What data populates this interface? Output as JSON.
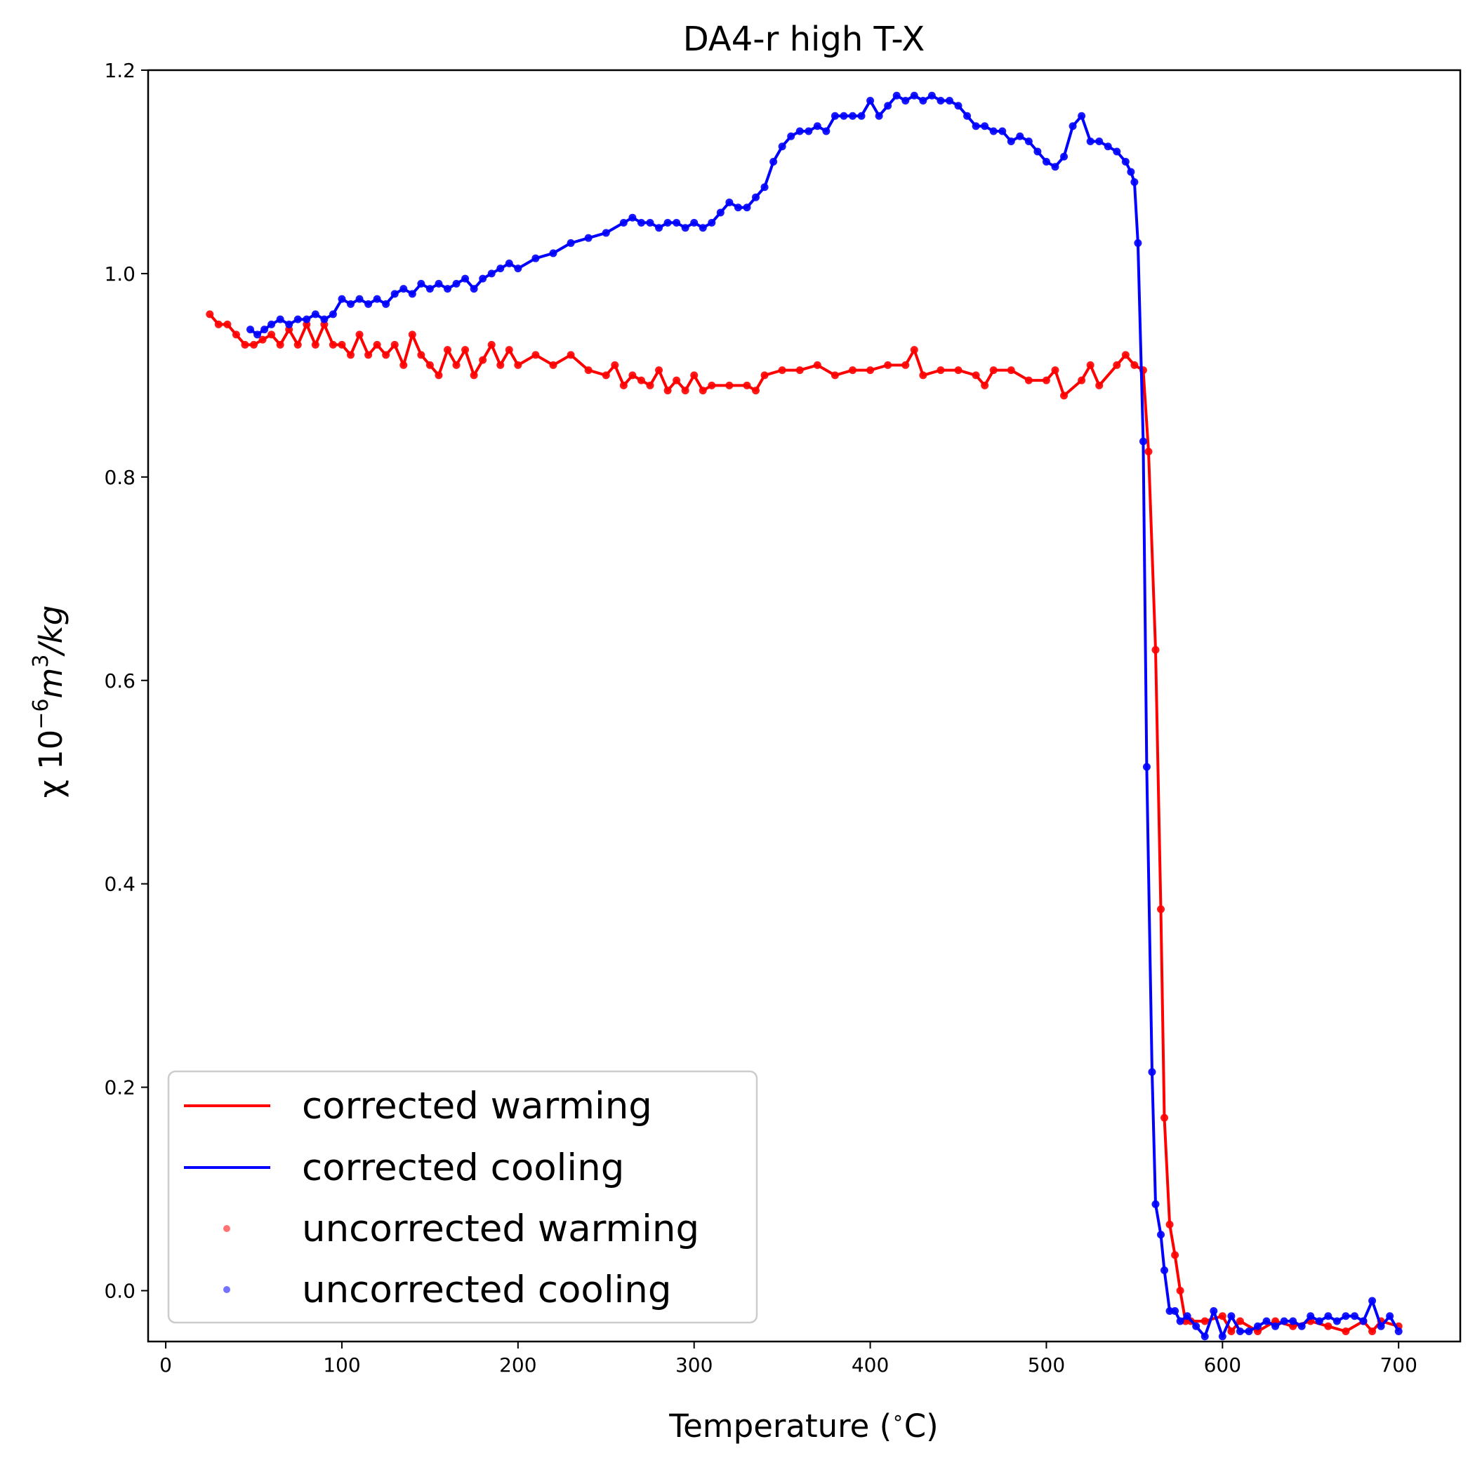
{
  "chart_data": {
    "type": "line",
    "title": "DA4-r high T-X",
    "xlabel": "Temperature (",
    "xlabel_degree": "∘",
    "xlabel_unit": "C)",
    "ylabel": "χ 10",
    "ylabel_exp": "−6",
    "ylabel_unit": "m",
    "ylabel_unit_exp": "3",
    "ylabel_tail": "/kg",
    "xlim": [
      -10,
      735
    ],
    "ylim": [
      -0.05,
      1.2
    ],
    "xticks": [
      0,
      100,
      200,
      300,
      400,
      500,
      600,
      700
    ],
    "yticks": [
      0.0,
      0.2,
      0.4,
      0.6,
      0.8,
      1.0,
      1.2
    ],
    "xtick_labels": [
      "0",
      "100",
      "200",
      "300",
      "400",
      "500",
      "600",
      "700"
    ],
    "ytick_labels": [
      "0.0",
      "0.2",
      "0.4",
      "0.6",
      "0.8",
      "1.0",
      "1.2"
    ],
    "legend_position": "lower-left",
    "series": [
      {
        "name": "corrected warming",
        "color": "#ff0000",
        "style": "line",
        "x": [
          25,
          30,
          35,
          40,
          45,
          50,
          55,
          60,
          65,
          70,
          75,
          80,
          85,
          90,
          95,
          100,
          105,
          110,
          115,
          120,
          125,
          130,
          135,
          140,
          145,
          150,
          155,
          160,
          165,
          170,
          175,
          180,
          185,
          190,
          195,
          200,
          210,
          220,
          230,
          240,
          250,
          255,
          260,
          265,
          270,
          275,
          280,
          285,
          290,
          295,
          300,
          305,
          310,
          320,
          330,
          335,
          340,
          350,
          360,
          370,
          380,
          390,
          400,
          410,
          420,
          425,
          430,
          440,
          450,
          460,
          465,
          470,
          480,
          490,
          500,
          505,
          510,
          520,
          525,
          530,
          540,
          545,
          550,
          555,
          558,
          562,
          565,
          567,
          570,
          573,
          576,
          579,
          582,
          590,
          600,
          605,
          610,
          620,
          630,
          640,
          650,
          660,
          670,
          680,
          685,
          690,
          700
        ],
        "y": [
          0.96,
          0.95,
          0.95,
          0.94,
          0.93,
          0.93,
          0.935,
          0.94,
          0.93,
          0.945,
          0.93,
          0.95,
          0.93,
          0.95,
          0.93,
          0.93,
          0.92,
          0.94,
          0.92,
          0.93,
          0.92,
          0.93,
          0.91,
          0.94,
          0.92,
          0.91,
          0.9,
          0.925,
          0.91,
          0.925,
          0.9,
          0.915,
          0.93,
          0.91,
          0.925,
          0.91,
          0.92,
          0.91,
          0.92,
          0.905,
          0.9,
          0.91,
          0.89,
          0.9,
          0.895,
          0.89,
          0.905,
          0.885,
          0.895,
          0.885,
          0.9,
          0.885,
          0.89,
          0.89,
          0.89,
          0.885,
          0.9,
          0.905,
          0.905,
          0.91,
          0.9,
          0.905,
          0.905,
          0.91,
          0.91,
          0.925,
          0.9,
          0.905,
          0.905,
          0.9,
          0.89,
          0.905,
          0.905,
          0.895,
          0.895,
          0.905,
          0.88,
          0.895,
          0.91,
          0.89,
          0.91,
          0.92,
          0.91,
          0.905,
          0.825,
          0.63,
          0.375,
          0.17,
          0.065,
          0.035,
          0.0,
          -0.03,
          -0.03,
          -0.03,
          -0.025,
          -0.04,
          -0.03,
          -0.04,
          -0.03,
          -0.035,
          -0.03,
          -0.035,
          -0.04,
          -0.03,
          -0.04,
          -0.03,
          -0.035
        ]
      },
      {
        "name": "corrected cooling",
        "color": "#0000ff",
        "style": "line",
        "x": [
          48,
          52,
          56,
          60,
          65,
          70,
          75,
          80,
          85,
          90,
          95,
          100,
          105,
          110,
          115,
          120,
          125,
          130,
          135,
          140,
          145,
          150,
          155,
          160,
          165,
          170,
          175,
          180,
          185,
          190,
          195,
          200,
          210,
          220,
          230,
          240,
          250,
          260,
          265,
          270,
          275,
          280,
          285,
          290,
          295,
          300,
          305,
          310,
          315,
          320,
          325,
          330,
          335,
          340,
          345,
          350,
          355,
          360,
          365,
          370,
          375,
          380,
          385,
          390,
          395,
          400,
          405,
          410,
          415,
          420,
          425,
          430,
          435,
          440,
          445,
          450,
          455,
          460,
          465,
          470,
          475,
          480,
          485,
          490,
          495,
          500,
          505,
          510,
          515,
          520,
          525,
          530,
          535,
          540,
          545,
          548,
          550,
          552,
          555,
          557,
          560,
          562,
          565,
          567,
          570,
          573,
          576,
          580,
          585,
          590,
          595,
          600,
          605,
          610,
          615,
          620,
          625,
          630,
          635,
          640,
          645,
          650,
          655,
          660,
          665,
          670,
          675,
          680,
          685,
          690,
          695,
          700
        ],
        "y": [
          0.945,
          0.94,
          0.945,
          0.95,
          0.955,
          0.95,
          0.955,
          0.955,
          0.96,
          0.955,
          0.96,
          0.975,
          0.97,
          0.975,
          0.97,
          0.975,
          0.97,
          0.98,
          0.985,
          0.98,
          0.99,
          0.985,
          0.99,
          0.985,
          0.99,
          0.995,
          0.985,
          0.995,
          1.0,
          1.005,
          1.01,
          1.005,
          1.015,
          1.02,
          1.03,
          1.035,
          1.04,
          1.05,
          1.055,
          1.05,
          1.05,
          1.045,
          1.05,
          1.05,
          1.045,
          1.05,
          1.045,
          1.05,
          1.06,
          1.07,
          1.065,
          1.065,
          1.075,
          1.085,
          1.11,
          1.125,
          1.135,
          1.14,
          1.14,
          1.145,
          1.14,
          1.155,
          1.155,
          1.155,
          1.155,
          1.17,
          1.155,
          1.165,
          1.175,
          1.17,
          1.175,
          1.17,
          1.175,
          1.17,
          1.17,
          1.165,
          1.155,
          1.145,
          1.145,
          1.14,
          1.14,
          1.13,
          1.135,
          1.13,
          1.12,
          1.11,
          1.105,
          1.115,
          1.145,
          1.155,
          1.13,
          1.13,
          1.125,
          1.12,
          1.11,
          1.1,
          1.09,
          1.03,
          0.835,
          0.515,
          0.215,
          0.085,
          0.055,
          0.02,
          -0.02,
          -0.02,
          -0.03,
          -0.025,
          -0.035,
          -0.045,
          -0.02,
          -0.045,
          -0.025,
          -0.04,
          -0.04,
          -0.035,
          -0.03,
          -0.035,
          -0.03,
          -0.03,
          -0.035,
          -0.025,
          -0.03,
          -0.025,
          -0.03,
          -0.025,
          -0.025,
          -0.03,
          -0.01,
          -0.035,
          -0.025,
          -0.04
        ]
      },
      {
        "name": "uncorrected warming",
        "color": "#ff0000",
        "style": "markers"
      },
      {
        "name": "uncorrected cooling",
        "color": "#0000ff",
        "style": "markers"
      }
    ]
  }
}
